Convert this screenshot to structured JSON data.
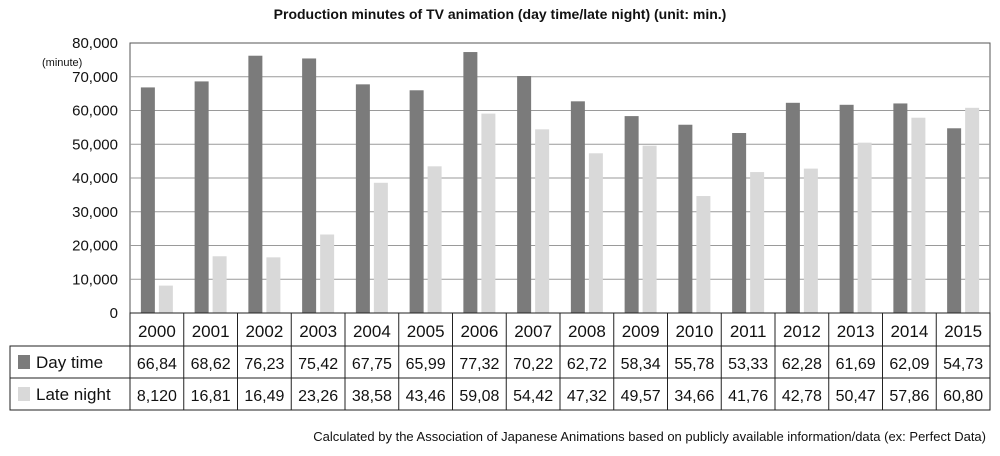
{
  "chart_data": {
    "type": "bar",
    "title": "Production minutes of TV animation (day time/late night) (unit: min.)",
    "y_unit_label": "(minute)",
    "ylim": [
      0,
      80000
    ],
    "y_ticks": [
      "0",
      "10,000",
      "20,000",
      "30,000",
      "40,000",
      "50,000",
      "60,000",
      "70,000",
      "80,000"
    ],
    "y_tick_values": [
      0,
      10000,
      20000,
      30000,
      40000,
      50000,
      60000,
      70000,
      80000
    ],
    "grid": true,
    "categories": [
      "2000",
      "2001",
      "2002",
      "2003",
      "2004",
      "2005",
      "2006",
      "2007",
      "2008",
      "2009",
      "2010",
      "2011",
      "2012",
      "2013",
      "2014",
      "2015"
    ],
    "series": [
      {
        "name": "Day time",
        "color": "#7b7b7b",
        "values": [
          66840,
          68620,
          76230,
          75420,
          67750,
          65990,
          77320,
          70220,
          62720,
          58340,
          55780,
          53330,
          62280,
          61690,
          62090,
          54730
        ],
        "table_labels": [
          "66,84",
          "68,62",
          "76,23",
          "75,42",
          "67,75",
          "65,99",
          "77,32",
          "70,22",
          "62,72",
          "58,34",
          "55,78",
          "53,33",
          "62,28",
          "61,69",
          "62,09",
          "54,73"
        ]
      },
      {
        "name": "Late night",
        "color": "#d9d9d9",
        "values": [
          8120,
          16810,
          16490,
          23260,
          38580,
          43460,
          59080,
          54420,
          47320,
          49570,
          34660,
          41760,
          42780,
          50470,
          57860,
          60800
        ],
        "table_labels": [
          "8,120",
          "16,81",
          "16,49",
          "23,26",
          "38,58",
          "43,46",
          "59,08",
          "54,42",
          "47,32",
          "49,57",
          "34,66",
          "41,76",
          "42,78",
          "50,47",
          "57,86",
          "60,80"
        ]
      }
    ],
    "legend_placement": "data-table-left"
  },
  "source_note": "Calculated by the Association of Japanese Animations based on publicly available information/data (ex: Perfect Data)"
}
